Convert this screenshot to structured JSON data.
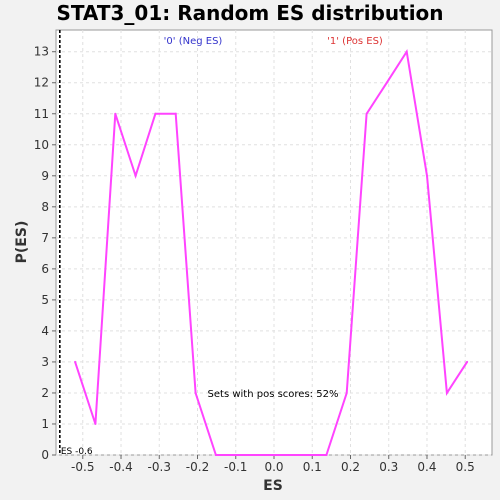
{
  "chart_data": {
    "type": "line",
    "title": "STAT3_01: Random ES distribution",
    "xlabel": "ES",
    "ylabel": "P(ES)",
    "xlim": [
      -0.57,
      0.57
    ],
    "ylim": [
      0,
      13.7
    ],
    "xticks": [
      "-0.5",
      "-0.4",
      "-0.3",
      "-0.2",
      "-0.1",
      "0.0",
      "0.1",
      "0.2",
      "0.3",
      "0.4",
      "0.5"
    ],
    "yticks": [
      "0",
      "1",
      "2",
      "3",
      "4",
      "5",
      "6",
      "7",
      "8",
      "9",
      "10",
      "11",
      "12",
      "13"
    ],
    "grid": true,
    "series": [
      {
        "color": "#ff44ff",
        "x": [
          -0.52,
          -0.467,
          -0.415,
          -0.362,
          -0.31,
          -0.257,
          -0.205,
          -0.152,
          -0.1,
          -0.047,
          0.005,
          0.058,
          0.11,
          0.137,
          0.19,
          0.242,
          0.295,
          0.347,
          0.4,
          0.452,
          0.505
        ],
        "y": [
          3,
          1,
          11,
          9,
          11,
          11,
          2,
          0,
          0,
          0,
          0,
          0,
          0,
          0,
          2,
          11,
          12,
          13,
          9,
          2,
          3
        ]
      }
    ],
    "marker": {
      "x": -0.56,
      "label": "ES -0.6"
    },
    "annotations": {
      "neg_label": "'0' (Neg ES)",
      "pos_label": "'1' (Pos ES)",
      "pos_scores": "Sets with pos scores: 52%"
    },
    "colors": {
      "neg": "#3333cc",
      "pos": "#dd3333",
      "line": "#ff44ff"
    }
  }
}
